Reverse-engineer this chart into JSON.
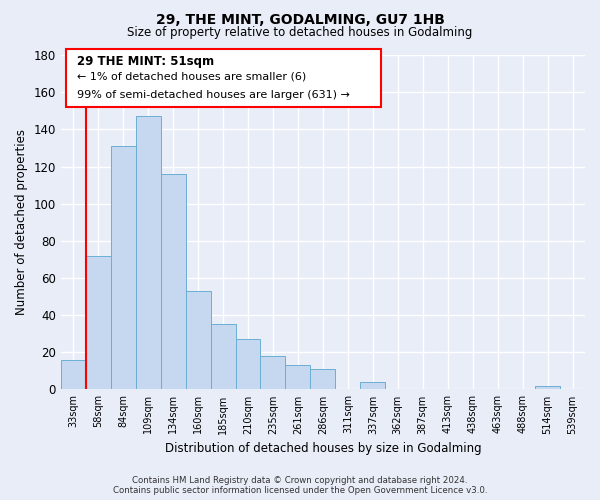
{
  "title": "29, THE MINT, GODALMING, GU7 1HB",
  "subtitle": "Size of property relative to detached houses in Godalming",
  "xlabel": "Distribution of detached houses by size in Godalming",
  "ylabel": "Number of detached properties",
  "bar_color": "#c5d8f0",
  "bar_edge_color": "#6baed6",
  "categories": [
    "33sqm",
    "58sqm",
    "84sqm",
    "109sqm",
    "134sqm",
    "160sqm",
    "185sqm",
    "210sqm",
    "235sqm",
    "261sqm",
    "286sqm",
    "311sqm",
    "337sqm",
    "362sqm",
    "387sqm",
    "413sqm",
    "438sqm",
    "463sqm",
    "488sqm",
    "514sqm",
    "539sqm"
  ],
  "values": [
    16,
    72,
    131,
    147,
    116,
    53,
    35,
    27,
    18,
    13,
    11,
    0,
    4,
    0,
    0,
    0,
    0,
    0,
    0,
    2,
    0
  ],
  "ylim": [
    0,
    180
  ],
  "yticks": [
    0,
    20,
    40,
    60,
    80,
    100,
    120,
    140,
    160,
    180
  ],
  "annotation_text_line1": "29 THE MINT: 51sqm",
  "annotation_text_line2": "← 1% of detached houses are smaller (6)",
  "annotation_text_line3": "99% of semi-detached houses are larger (631) →",
  "footer_line1": "Contains HM Land Registry data © Crown copyright and database right 2024.",
  "footer_line2": "Contains public sector information licensed under the Open Government Licence v3.0.",
  "background_color": "#e8edf8",
  "grid_color": "#ffffff",
  "redline_x": 0.5
}
